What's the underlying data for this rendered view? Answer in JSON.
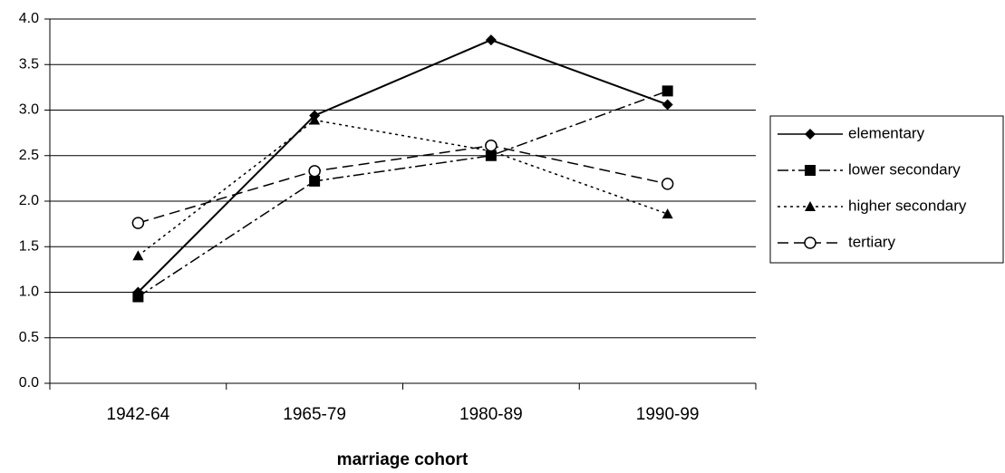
{
  "chart_data": {
    "type": "line",
    "x_label": "marriage cohort",
    "categories": [
      "1942-64",
      "1965-79",
      "1980-89",
      "1990-99"
    ],
    "series": [
      {
        "name": "elementary",
        "color": "#000000",
        "dash": "none",
        "marker": "diamond",
        "values": [
          1.0,
          2.94,
          3.77,
          3.06
        ]
      },
      {
        "name": "lower secondary",
        "color": "#000000",
        "dash": "12 4 3 4",
        "marker": "square",
        "values": [
          0.95,
          2.22,
          2.5,
          3.21
        ]
      },
      {
        "name": "higher secondary",
        "color": "#000000",
        "dash": "3 4",
        "marker": "triangle",
        "values": [
          1.4,
          2.89,
          2.55,
          1.86
        ]
      },
      {
        "name": "tertiary",
        "color": "#000000",
        "dash": "12 6",
        "marker": "circle",
        "values": [
          1.76,
          2.33,
          2.61,
          2.19
        ]
      }
    ],
    "ylim": [
      0,
      4
    ],
    "yticks": [
      {
        "value": 0,
        "label": "0.0"
      },
      0.5,
      {
        "value": 1,
        "label": "1.0"
      },
      1.5,
      {
        "value": 2,
        "label": "2.0"
      },
      2.5,
      {
        "value": 3,
        "label": "3.0"
      },
      3.5,
      {
        "value": 4,
        "label": "4.0"
      }
    ],
    "grid": true,
    "legend": "right"
  }
}
